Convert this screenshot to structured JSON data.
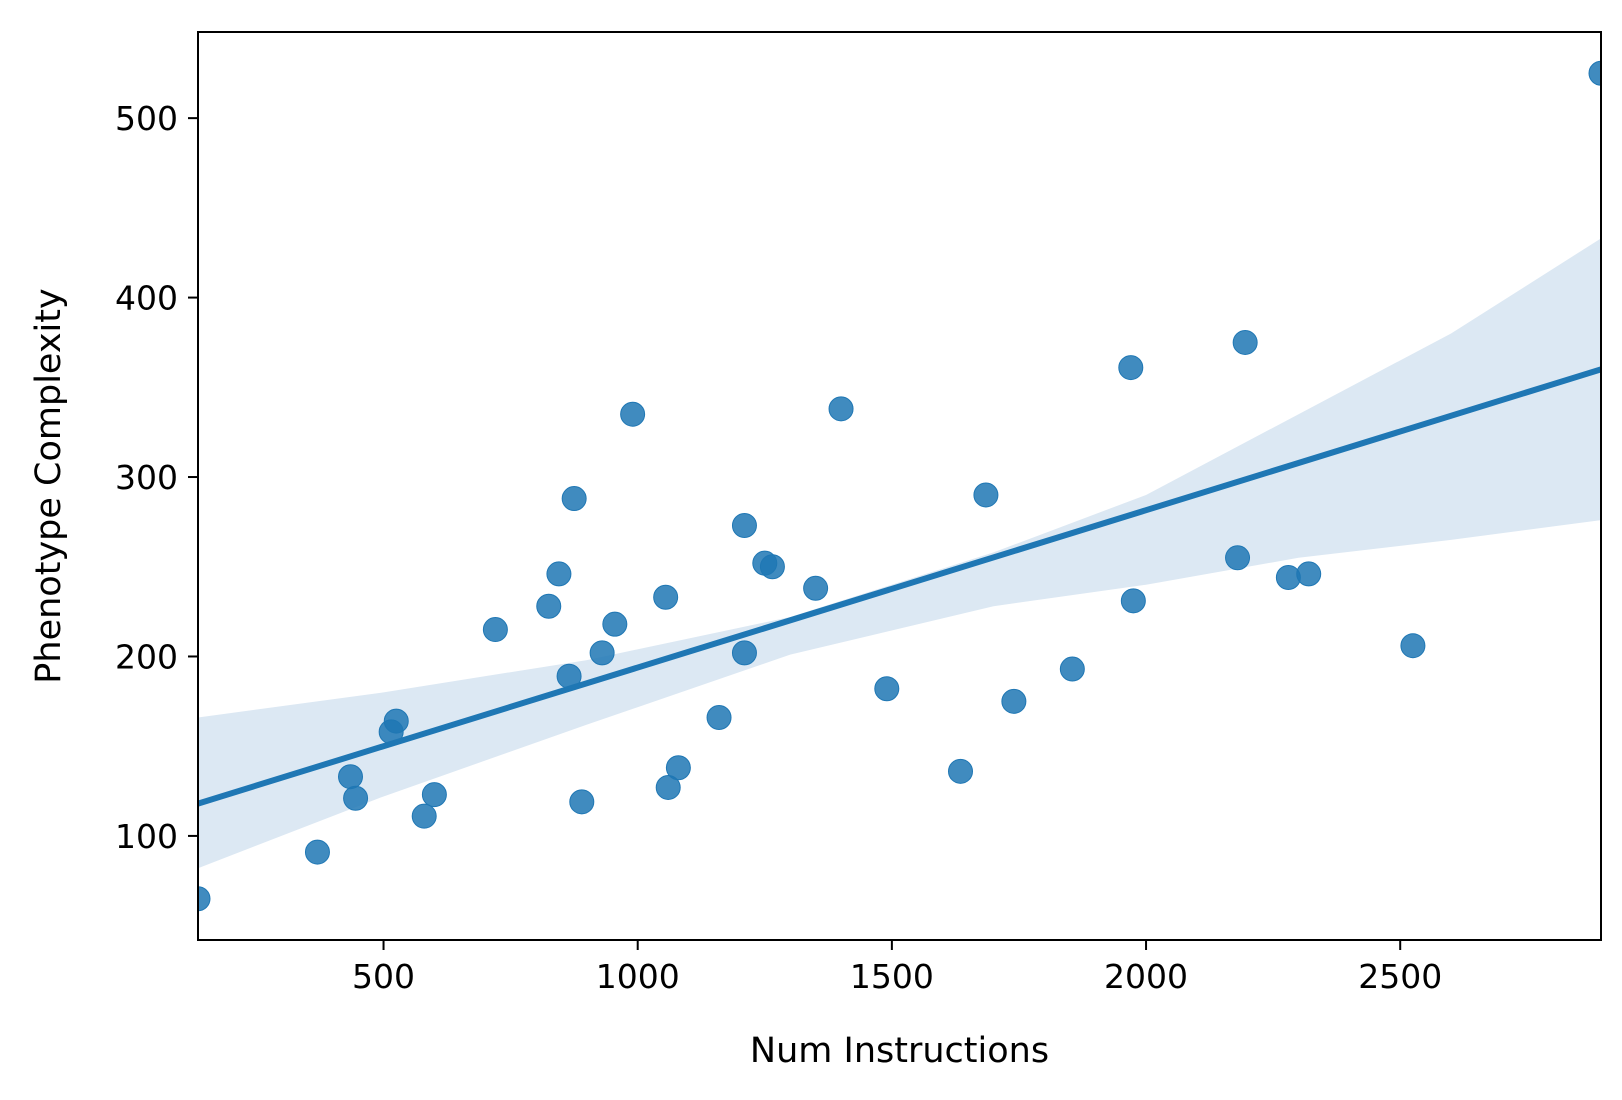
{
  "chart_data": {
    "type": "scatter",
    "title": "",
    "xlabel": "Num Instructions",
    "ylabel": "Phenotype Complexity",
    "xlim": [
      135,
      2895
    ],
    "ylim": [
      42,
      548
    ],
    "xticks": [
      500,
      1000,
      1500,
      2000,
      2500
    ],
    "yticks": [
      100,
      200,
      300,
      400,
      500
    ],
    "x_tick_labels": [
      "500",
      "1000",
      "1500",
      "2000",
      "2500"
    ],
    "y_tick_labels": [
      "100",
      "200",
      "300",
      "400",
      "500"
    ],
    "grid": false,
    "legend": "none",
    "colors": {
      "points": "#1f77b4",
      "line": "#1f77b4",
      "band": "#dce8f3",
      "axes": "#000000"
    },
    "points": [
      {
        "x": 135,
        "y": 65
      },
      {
        "x": 370,
        "y": 91
      },
      {
        "x": 435,
        "y": 133
      },
      {
        "x": 445,
        "y": 121
      },
      {
        "x": 515,
        "y": 158
      },
      {
        "x": 525,
        "y": 164
      },
      {
        "x": 580,
        "y": 111
      },
      {
        "x": 600,
        "y": 123
      },
      {
        "x": 720,
        "y": 215
      },
      {
        "x": 825,
        "y": 228
      },
      {
        "x": 845,
        "y": 246
      },
      {
        "x": 865,
        "y": 189
      },
      {
        "x": 875,
        "y": 288
      },
      {
        "x": 890,
        "y": 119
      },
      {
        "x": 930,
        "y": 202
      },
      {
        "x": 955,
        "y": 218
      },
      {
        "x": 990,
        "y": 335
      },
      {
        "x": 1055,
        "y": 233
      },
      {
        "x": 1060,
        "y": 127
      },
      {
        "x": 1080,
        "y": 138
      },
      {
        "x": 1160,
        "y": 166
      },
      {
        "x": 1210,
        "y": 273
      },
      {
        "x": 1210,
        "y": 202
      },
      {
        "x": 1250,
        "y": 252
      },
      {
        "x": 1265,
        "y": 250
      },
      {
        "x": 1350,
        "y": 238
      },
      {
        "x": 1400,
        "y": 338
      },
      {
        "x": 1490,
        "y": 182
      },
      {
        "x": 1635,
        "y": 136
      },
      {
        "x": 1685,
        "y": 290
      },
      {
        "x": 1740,
        "y": 175
      },
      {
        "x": 1855,
        "y": 193
      },
      {
        "x": 1970,
        "y": 361
      },
      {
        "x": 1975,
        "y": 231
      },
      {
        "x": 2180,
        "y": 255
      },
      {
        "x": 2195,
        "y": 375
      },
      {
        "x": 2280,
        "y": 244
      },
      {
        "x": 2320,
        "y": 246
      },
      {
        "x": 2525,
        "y": 206
      },
      {
        "x": 2895,
        "y": 525
      }
    ],
    "regression_line": [
      {
        "x": 135,
        "y": 118
      },
      {
        "x": 2895,
        "y": 360
      }
    ],
    "confidence_band": {
      "upper": [
        {
          "x": 135,
          "y": 166
        },
        {
          "x": 500,
          "y": 180
        },
        {
          "x": 900,
          "y": 198
        },
        {
          "x": 1300,
          "y": 222
        },
        {
          "x": 1700,
          "y": 258
        },
        {
          "x": 2000,
          "y": 290
        },
        {
          "x": 2300,
          "y": 335
        },
        {
          "x": 2600,
          "y": 380
        },
        {
          "x": 2895,
          "y": 433
        }
      ],
      "lower": [
        {
          "x": 135,
          "y": 82
        },
        {
          "x": 500,
          "y": 122
        },
        {
          "x": 900,
          "y": 162
        },
        {
          "x": 1300,
          "y": 201
        },
        {
          "x": 1700,
          "y": 228
        },
        {
          "x": 2000,
          "y": 240
        },
        {
          "x": 2300,
          "y": 255
        },
        {
          "x": 2600,
          "y": 265
        },
        {
          "x": 2895,
          "y": 276
        }
      ]
    }
  }
}
